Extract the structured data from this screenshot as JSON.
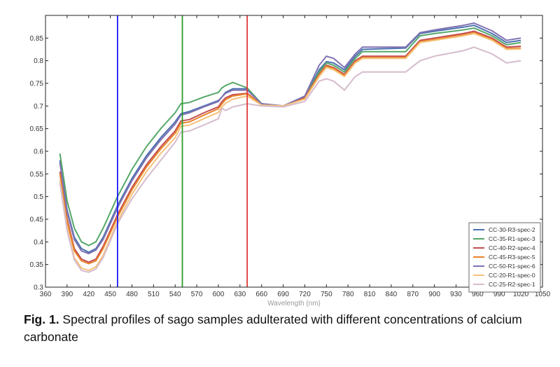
{
  "chart_data": {
    "type": "line",
    "title": "",
    "xlabel": "Wavelength (nm)",
    "ylabel": "",
    "xlim": [
      360,
      1050
    ],
    "ylim": [
      0.3,
      0.9
    ],
    "xticks": [
      360,
      390,
      420,
      450,
      480,
      510,
      540,
      570,
      600,
      630,
      660,
      690,
      720,
      750,
      780,
      810,
      840,
      870,
      900,
      930,
      960,
      990,
      1020,
      1050
    ],
    "yticks": [
      0.3,
      0.35,
      0.4,
      0.45,
      0.5,
      0.55,
      0.6,
      0.65,
      0.7,
      0.75,
      0.8,
      0.85
    ],
    "ytick_labels": [
      "0.3",
      "0.35",
      "0.4",
      "0.45",
      "0.5",
      "0.55",
      "0.6",
      "0.65",
      "0.7",
      "0.75",
      "0.8",
      "0.85"
    ],
    "grid": false,
    "legend_position": "lower-right",
    "vertical_lines": [
      {
        "x": 460,
        "color": "#1a1aff"
      },
      {
        "x": 550,
        "color": "#2a9a2a"
      },
      {
        "x": 640,
        "color": "#e03a3a"
      }
    ],
    "x": [
      380,
      390,
      400,
      410,
      420,
      430,
      440,
      460,
      480,
      500,
      520,
      540,
      548,
      560,
      580,
      600,
      605,
      610,
      620,
      640,
      660,
      690,
      720,
      740,
      750,
      760,
      775,
      790,
      800,
      860,
      880,
      900,
      940,
      955,
      980,
      1000,
      1020
    ],
    "series": [
      {
        "name": "CC-30-R3-spec-2",
        "color": "#4c72b0",
        "values": [
          0.58,
          0.47,
          0.41,
          0.385,
          0.377,
          0.385,
          0.41,
          0.48,
          0.54,
          0.59,
          0.63,
          0.665,
          0.683,
          0.688,
          0.7,
          0.712,
          0.72,
          0.73,
          0.738,
          0.738,
          0.705,
          0.7,
          0.72,
          0.78,
          0.798,
          0.795,
          0.78,
          0.81,
          0.825,
          0.828,
          0.86,
          0.865,
          0.874,
          0.878,
          0.86,
          0.84,
          0.845
        ]
      },
      {
        "name": "CC-35-R1-spec-3",
        "color": "#55a868",
        "values": [
          0.595,
          0.49,
          0.43,
          0.4,
          0.392,
          0.4,
          0.43,
          0.5,
          0.56,
          0.61,
          0.65,
          0.685,
          0.705,
          0.708,
          0.72,
          0.73,
          0.74,
          0.745,
          0.752,
          0.74,
          0.705,
          0.7,
          0.72,
          0.775,
          0.795,
          0.79,
          0.775,
          0.805,
          0.82,
          0.82,
          0.855,
          0.86,
          0.868,
          0.872,
          0.855,
          0.835,
          0.84
        ]
      },
      {
        "name": "CC-40-R2-spec-4",
        "color": "#c44e52",
        "values": [
          0.555,
          0.45,
          0.385,
          0.362,
          0.355,
          0.362,
          0.39,
          0.46,
          0.52,
          0.57,
          0.61,
          0.645,
          0.667,
          0.67,
          0.685,
          0.698,
          0.71,
          0.718,
          0.725,
          0.728,
          0.703,
          0.7,
          0.718,
          0.77,
          0.79,
          0.785,
          0.77,
          0.8,
          0.81,
          0.81,
          0.845,
          0.85,
          0.86,
          0.865,
          0.85,
          0.83,
          0.832
        ]
      },
      {
        "name": "CC-45-R3-spec-5",
        "color": "#e8832a",
        "values": [
          0.55,
          0.445,
          0.38,
          0.358,
          0.352,
          0.358,
          0.385,
          0.455,
          0.515,
          0.565,
          0.605,
          0.64,
          0.662,
          0.665,
          0.68,
          0.694,
          0.705,
          0.714,
          0.722,
          0.727,
          0.703,
          0.7,
          0.716,
          0.768,
          0.788,
          0.783,
          0.767,
          0.797,
          0.807,
          0.807,
          0.842,
          0.847,
          0.857,
          0.862,
          0.847,
          0.827,
          0.828
        ]
      },
      {
        "name": "CC-50-R1-spec-6",
        "color": "#8172b2",
        "values": [
          0.575,
          0.465,
          0.405,
          0.38,
          0.374,
          0.382,
          0.405,
          0.475,
          0.535,
          0.585,
          0.625,
          0.66,
          0.68,
          0.685,
          0.698,
          0.71,
          0.72,
          0.728,
          0.735,
          0.735,
          0.705,
          0.7,
          0.722,
          0.79,
          0.81,
          0.805,
          0.785,
          0.815,
          0.83,
          0.83,
          0.862,
          0.868,
          0.878,
          0.883,
          0.866,
          0.845,
          0.85
        ]
      },
      {
        "name": "CC-20-R1-spec-0",
        "color": "#f5c27a",
        "values": [
          0.535,
          0.43,
          0.365,
          0.342,
          0.337,
          0.345,
          0.37,
          0.445,
          0.505,
          0.555,
          0.595,
          0.63,
          0.655,
          0.658,
          0.672,
          0.686,
          0.698,
          0.706,
          0.715,
          0.722,
          0.702,
          0.7,
          0.715,
          0.765,
          0.785,
          0.78,
          0.765,
          0.795,
          0.805,
          0.805,
          0.84,
          0.845,
          0.855,
          0.86,
          0.845,
          0.825,
          0.826
        ]
      },
      {
        "name": "CC-25-R2-spec-1",
        "color": "#d6bccd",
        "values": [
          0.53,
          0.425,
          0.36,
          0.337,
          0.333,
          0.34,
          0.365,
          0.44,
          0.495,
          0.54,
          0.58,
          0.62,
          0.642,
          0.645,
          0.658,
          0.672,
          0.695,
          0.69,
          0.698,
          0.705,
          0.7,
          0.698,
          0.71,
          0.755,
          0.76,
          0.755,
          0.735,
          0.765,
          0.775,
          0.775,
          0.8,
          0.81,
          0.822,
          0.83,
          0.815,
          0.795,
          0.8
        ]
      }
    ]
  },
  "caption": {
    "label": "Fig. 1.",
    "text": " Spectral profiles of sago samples adulterated with different concentrations of calcium carbonate"
  }
}
